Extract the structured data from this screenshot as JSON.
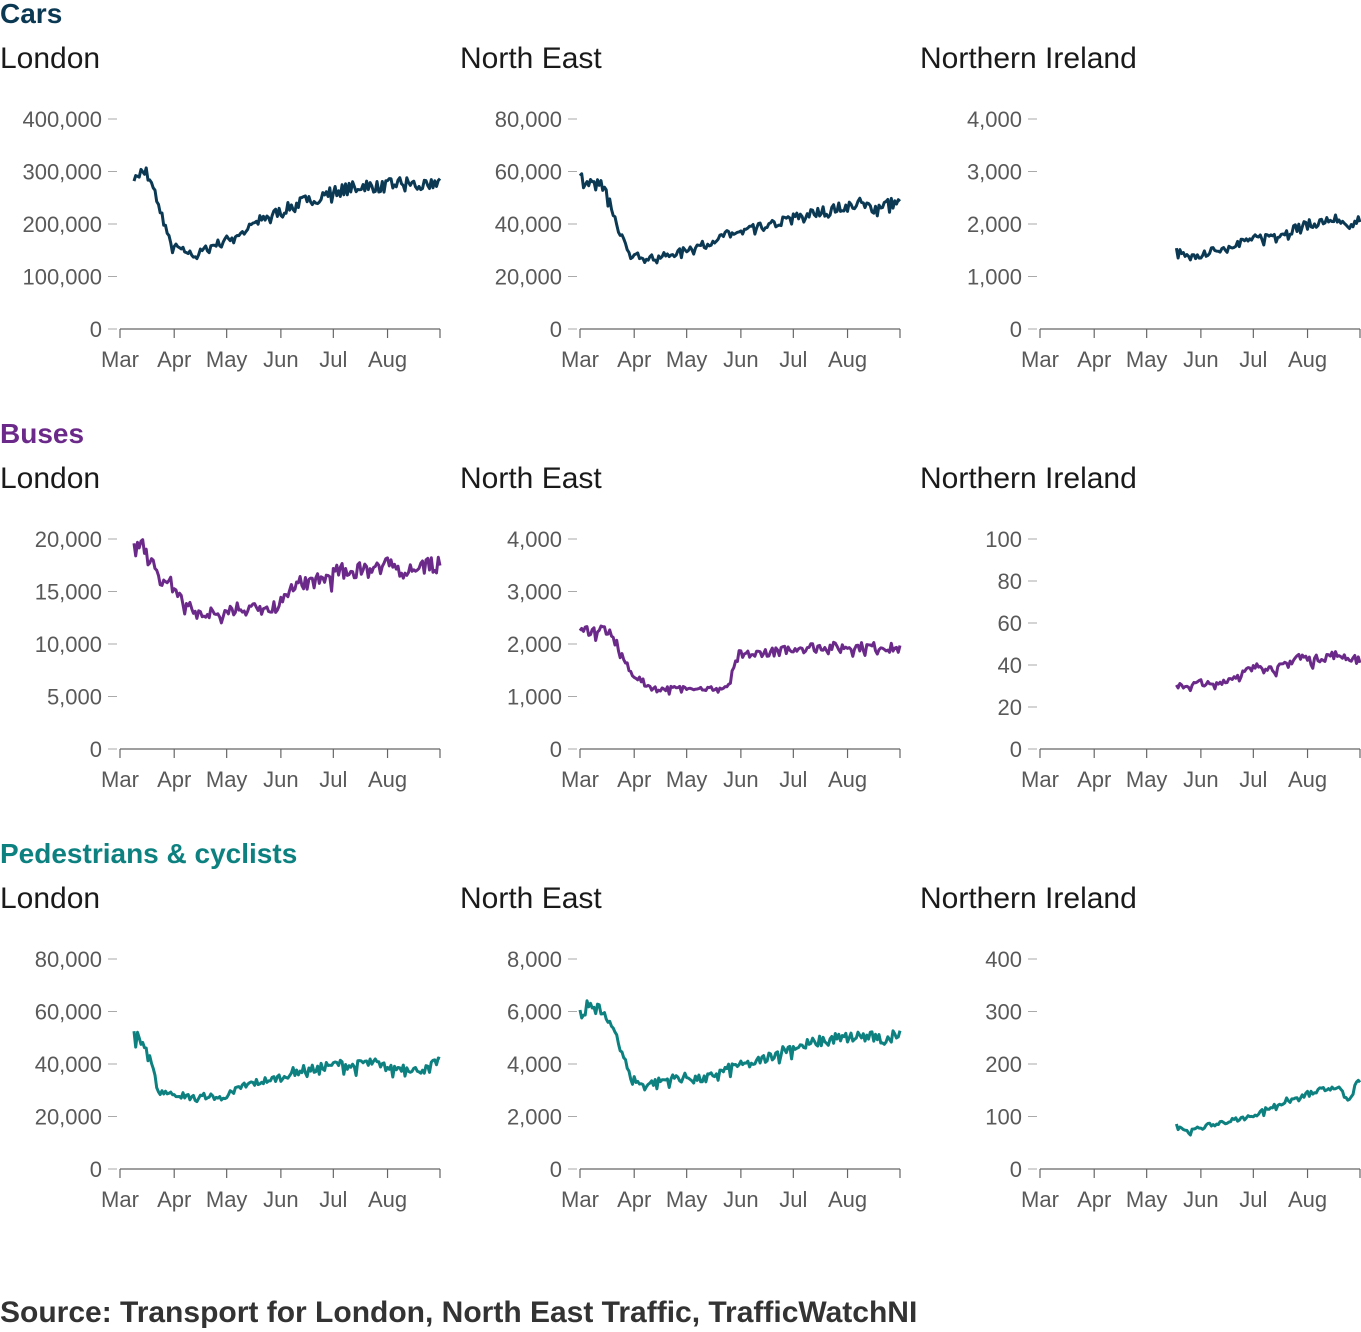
{
  "source_note": "Source: Transport for London, North East Traffic, TrafficWatchNI",
  "axis_months": [
    "Mar",
    "Apr",
    "May",
    "Jun",
    "Jul",
    "Aug"
  ],
  "sections": [
    {
      "title": "Cars",
      "color": "#0b3954",
      "panels": [
        {
          "region": "London",
          "ticks": [
            "0",
            "100,000",
            "200,000",
            "300,000",
            "400,000"
          ]
        },
        {
          "region": "North East",
          "ticks": [
            "0",
            "20,000",
            "40,000",
            "60,000",
            "80,000"
          ]
        },
        {
          "region": "Northern Ireland",
          "ticks": [
            "0",
            "1,000",
            "2,000",
            "3,000",
            "4,000"
          ]
        }
      ]
    },
    {
      "title": "Buses",
      "color": "#6b2a8a",
      "panels": [
        {
          "region": "London",
          "ticks": [
            "0",
            "5,000",
            "10,000",
            "15,000",
            "20,000"
          ]
        },
        {
          "region": "North East",
          "ticks": [
            "0",
            "1,000",
            "2,000",
            "3,000",
            "4,000"
          ]
        },
        {
          "region": "Northern Ireland",
          "ticks": [
            "0",
            "20",
            "40",
            "60",
            "80",
            "100"
          ]
        }
      ]
    },
    {
      "title": "Pedestrians & cyclists",
      "color": "#0d8080",
      "panels": [
        {
          "region": "London",
          "ticks": [
            "0",
            "20,000",
            "40,000",
            "60,000",
            "80,000"
          ]
        },
        {
          "region": "North East",
          "ticks": [
            "0",
            "2,000",
            "4,000",
            "6,000",
            "8,000"
          ]
        },
        {
          "region": "Northern Ireland",
          "ticks": [
            "0",
            "100",
            "200",
            "300",
            "400"
          ]
        }
      ]
    }
  ],
  "chart_data": [
    {
      "type": "line",
      "section": "Cars",
      "region": "London",
      "x_range": [
        "2020-03-01",
        "2020-08-31"
      ],
      "ylim": [
        0,
        400000
      ],
      "x": [
        "2020-03-09",
        "2020-03-16",
        "2020-03-23",
        "2020-03-30",
        "2020-04-06",
        "2020-04-13",
        "2020-04-20",
        "2020-04-27",
        "2020-05-04",
        "2020-05-11",
        "2020-05-18",
        "2020-05-25",
        "2020-06-01",
        "2020-06-08",
        "2020-06-15",
        "2020-06-22",
        "2020-06-29",
        "2020-07-06",
        "2020-07-13",
        "2020-07-20",
        "2020-07-27",
        "2020-08-03",
        "2020-08-10",
        "2020-08-17",
        "2020-08-24",
        "2020-08-31"
      ],
      "y": [
        295000,
        300000,
        240000,
        160000,
        150000,
        140000,
        155000,
        165000,
        175000,
        185000,
        205000,
        215000,
        225000,
        235000,
        245000,
        250000,
        260000,
        265000,
        270000,
        275000,
        270000,
        275000,
        280000,
        275000,
        270000,
        285000
      ]
    },
    {
      "type": "line",
      "section": "Cars",
      "region": "North East",
      "x_range": [
        "2020-03-01",
        "2020-08-31"
      ],
      "ylim": [
        0,
        80000
      ],
      "x": [
        "2020-03-01",
        "2020-03-08",
        "2020-03-15",
        "2020-03-22",
        "2020-03-29",
        "2020-04-05",
        "2020-04-12",
        "2020-04-19",
        "2020-04-26",
        "2020-05-03",
        "2020-05-10",
        "2020-05-17",
        "2020-05-24",
        "2020-05-31",
        "2020-06-07",
        "2020-06-14",
        "2020-06-21",
        "2020-06-28",
        "2020-07-05",
        "2020-07-12",
        "2020-07-19",
        "2020-07-26",
        "2020-08-02",
        "2020-08-09",
        "2020-08-16",
        "2020-08-23",
        "2020-08-31"
      ],
      "y": [
        57000,
        56000,
        55000,
        40000,
        28000,
        28000,
        27000,
        28000,
        29000,
        31000,
        32000,
        34000,
        36000,
        37000,
        38000,
        39000,
        40000,
        42000,
        43000,
        44000,
        45000,
        46000,
        47000,
        48000,
        46000,
        48000,
        48000
      ]
    },
    {
      "type": "line",
      "section": "Cars",
      "region": "Northern Ireland",
      "x_range": [
        "2020-03-01",
        "2020-08-31"
      ],
      "ylim": [
        0,
        4000
      ],
      "x": [
        "2020-05-18",
        "2020-05-25",
        "2020-06-01",
        "2020-06-08",
        "2020-06-15",
        "2020-06-22",
        "2020-06-29",
        "2020-07-06",
        "2020-07-13",
        "2020-07-20",
        "2020-07-27",
        "2020-08-03",
        "2020-08-10",
        "2020-08-17",
        "2020-08-24",
        "2020-08-31"
      ],
      "y": [
        1500,
        1350,
        1400,
        1500,
        1550,
        1650,
        1700,
        1750,
        1800,
        1850,
        1950,
        2000,
        2050,
        2100,
        1900,
        2100
      ]
    },
    {
      "type": "line",
      "section": "Buses",
      "region": "London",
      "x_range": [
        "2020-03-01",
        "2020-08-31"
      ],
      "ylim": [
        0,
        20000
      ],
      "x": [
        "2020-03-09",
        "2020-03-16",
        "2020-03-23",
        "2020-03-30",
        "2020-04-06",
        "2020-04-13",
        "2020-04-20",
        "2020-04-27",
        "2020-05-04",
        "2020-05-11",
        "2020-05-18",
        "2020-05-25",
        "2020-06-01",
        "2020-06-08",
        "2020-06-15",
        "2020-06-22",
        "2020-06-29",
        "2020-07-06",
        "2020-07-13",
        "2020-07-20",
        "2020-07-27",
        "2020-08-03",
        "2020-08-10",
        "2020-08-17",
        "2020-08-24",
        "2020-08-31"
      ],
      "y": [
        19000,
        19500,
        16000,
        16000,
        14000,
        13000,
        13000,
        13000,
        13500,
        13500,
        13500,
        13000,
        14000,
        15500,
        16000,
        16000,
        16500,
        17000,
        17000,
        17500,
        17500,
        17500,
        17000,
        17500,
        17500,
        17500
      ]
    },
    {
      "type": "line",
      "section": "Buses",
      "region": "North East",
      "x_range": [
        "2020-03-01",
        "2020-08-31"
      ],
      "ylim": [
        0,
        4000
      ],
      "x": [
        "2020-03-01",
        "2020-03-08",
        "2020-03-15",
        "2020-03-22",
        "2020-03-29",
        "2020-04-05",
        "2020-04-12",
        "2020-04-19",
        "2020-04-26",
        "2020-05-03",
        "2020-05-10",
        "2020-05-17",
        "2020-05-24",
        "2020-05-31",
        "2020-06-07",
        "2020-06-14",
        "2020-06-21",
        "2020-06-28",
        "2020-07-05",
        "2020-07-12",
        "2020-07-19",
        "2020-07-26",
        "2020-08-02",
        "2020-08-09",
        "2020-08-16",
        "2020-08-23",
        "2020-08-31"
      ],
      "y": [
        2300,
        2250,
        2300,
        2000,
        1500,
        1300,
        1150,
        1150,
        1150,
        1200,
        1150,
        1150,
        1150,
        1800,
        1800,
        1850,
        1850,
        1900,
        1950,
        1950,
        1950,
        1950,
        1950,
        1950,
        1950,
        1950,
        1900
      ]
    },
    {
      "type": "line",
      "section": "Buses",
      "region": "Northern Ireland",
      "x_range": [
        "2020-03-01",
        "2020-08-31"
      ],
      "ylim": [
        0,
        100
      ],
      "x": [
        "2020-05-18",
        "2020-05-25",
        "2020-06-01",
        "2020-06-08",
        "2020-06-15",
        "2020-06-22",
        "2020-06-29",
        "2020-07-06",
        "2020-07-13",
        "2020-07-20",
        "2020-07-27",
        "2020-08-03",
        "2020-08-10",
        "2020-08-17",
        "2020-08-24",
        "2020-08-31"
      ],
      "y": [
        30,
        30,
        32,
        30,
        33,
        35,
        38,
        40,
        38,
        40,
        45,
        42,
        44,
        45,
        44,
        42
      ]
    },
    {
      "type": "line",
      "section": "Pedestrians & cyclists",
      "region": "London",
      "x_range": [
        "2020-03-01",
        "2020-08-31"
      ],
      "ylim": [
        0,
        80000
      ],
      "x": [
        "2020-03-09",
        "2020-03-16",
        "2020-03-23",
        "2020-03-30",
        "2020-04-06",
        "2020-04-13",
        "2020-04-20",
        "2020-04-27",
        "2020-05-04",
        "2020-05-11",
        "2020-05-18",
        "2020-05-25",
        "2020-06-01",
        "2020-06-08",
        "2020-06-15",
        "2020-06-22",
        "2020-06-29",
        "2020-07-06",
        "2020-07-13",
        "2020-07-20",
        "2020-07-27",
        "2020-08-03",
        "2020-08-10",
        "2020-08-17",
        "2020-08-24",
        "2020-08-31"
      ],
      "y": [
        52000,
        46000,
        30000,
        29000,
        28000,
        27000,
        28000,
        27000,
        29000,
        32000,
        33000,
        34000,
        35000,
        37000,
        38000,
        38000,
        40000,
        40000,
        39000,
        41000,
        40000,
        38000,
        39000,
        38000,
        38000,
        42000
      ]
    },
    {
      "type": "line",
      "section": "Pedestrians & cyclists",
      "region": "North East",
      "x_range": [
        "2020-03-01",
        "2020-08-31"
      ],
      "ylim": [
        0,
        8000
      ],
      "x": [
        "2020-03-01",
        "2020-03-08",
        "2020-03-15",
        "2020-03-22",
        "2020-03-29",
        "2020-04-05",
        "2020-04-12",
        "2020-04-19",
        "2020-04-26",
        "2020-05-03",
        "2020-05-10",
        "2020-05-17",
        "2020-05-24",
        "2020-05-31",
        "2020-06-07",
        "2020-06-14",
        "2020-06-21",
        "2020-06-28",
        "2020-07-05",
        "2020-07-12",
        "2020-07-19",
        "2020-07-26",
        "2020-08-02",
        "2020-08-09",
        "2020-08-16",
        "2020-08-23",
        "2020-08-31"
      ],
      "y": [
        5800,
        6400,
        5800,
        5200,
        3600,
        3200,
        3300,
        3400,
        3500,
        3500,
        3400,
        3600,
        3800,
        4000,
        4000,
        4200,
        4400,
        4600,
        4700,
        4800,
        4900,
        5000,
        5000,
        5100,
        5000,
        4900,
        5300
      ]
    },
    {
      "type": "line",
      "section": "Pedestrians & cyclists",
      "region": "Northern Ireland",
      "x_range": [
        "2020-03-01",
        "2020-08-31"
      ],
      "ylim": [
        0,
        400
      ],
      "x": [
        "2020-05-18",
        "2020-05-25",
        "2020-06-01",
        "2020-06-08",
        "2020-06-15",
        "2020-06-22",
        "2020-06-29",
        "2020-07-06",
        "2020-07-13",
        "2020-07-20",
        "2020-07-27",
        "2020-08-03",
        "2020-08-10",
        "2020-08-17",
        "2020-08-24",
        "2020-08-31"
      ],
      "y": [
        85,
        70,
        80,
        85,
        90,
        95,
        100,
        110,
        120,
        130,
        135,
        145,
        150,
        160,
        130,
        170
      ]
    }
  ]
}
